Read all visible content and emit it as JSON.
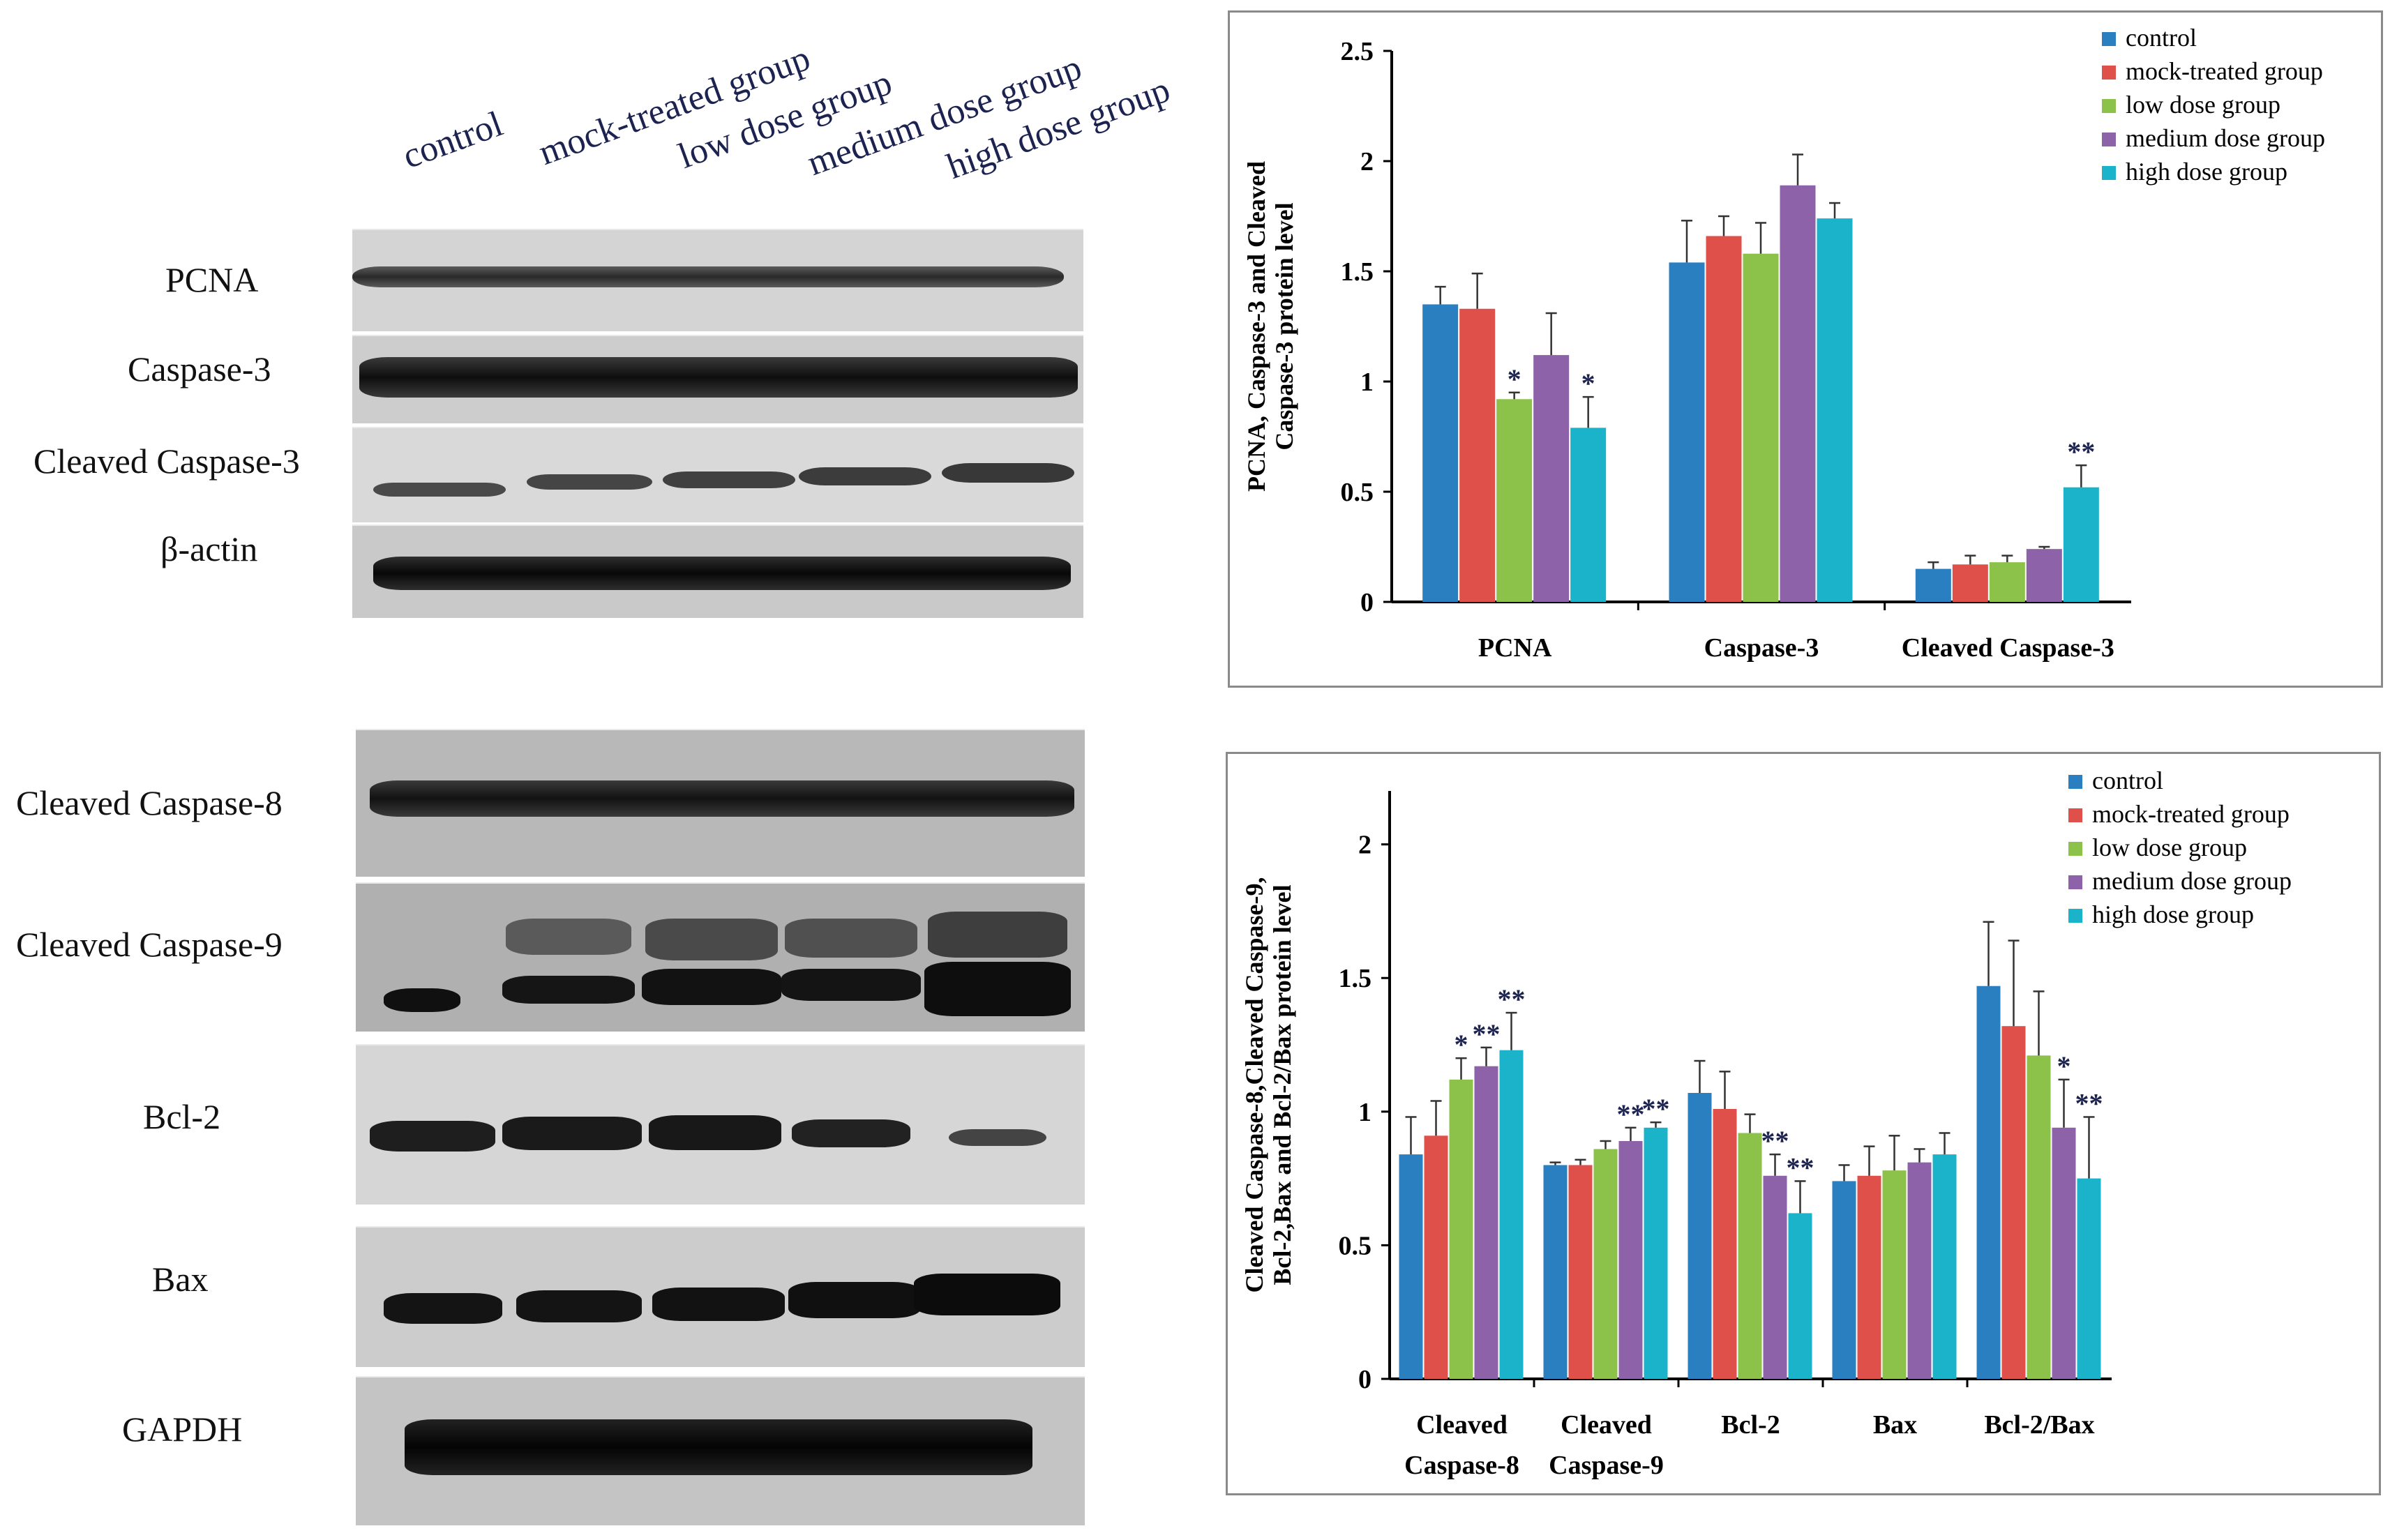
{
  "lanes": [
    "control",
    "mock-treated group",
    "low dose group",
    "medium dose group",
    "high  dose group"
  ],
  "blots_top": [
    "PCNA",
    "Caspase-3",
    "Cleaved Caspase-3",
    "β-actin"
  ],
  "blots_bottom": [
    "Cleaved Caspase-8",
    "Cleaved Caspase-9",
    "Bcl-2",
    "Bax",
    "GAPDH"
  ],
  "colors": {
    "control": "#2a7fc1",
    "mock": "#e0504b",
    "low": "#8cc24a",
    "medium": "#8e62a8",
    "high": "#1bb3c9",
    "sig": "#1c2350"
  },
  "chart_data": [
    {
      "type": "bar",
      "ylabel_lines": [
        "PCNA, Caspase-3 and Cleaved",
        "Caspase-3 protein level"
      ],
      "ylim": [
        0,
        2.5
      ],
      "yticks": [
        "0",
        "0.5",
        "1",
        "1.5",
        "2",
        "2.5"
      ],
      "ytick_values": [
        0,
        0.5,
        1,
        1.5,
        2,
        2.5
      ],
      "categories": [
        [
          "PCNA"
        ],
        [
          "Caspase-3"
        ],
        [
          "Cleaved Caspase-3"
        ]
      ],
      "legend": [
        "control",
        "mock-treated group",
        "low dose group",
        "medium dose group",
        "high dose group"
      ],
      "series": [
        {
          "name": "control",
          "values": [
            1.35,
            1.54,
            0.15
          ],
          "errors": [
            0.08,
            0.19,
            0.03
          ]
        },
        {
          "name": "mock-treated group",
          "values": [
            1.33,
            1.66,
            0.17
          ],
          "errors": [
            0.16,
            0.09,
            0.04
          ]
        },
        {
          "name": "low dose group",
          "values": [
            0.92,
            1.58,
            0.18
          ],
          "errors": [
            0.03,
            0.14,
            0.03
          ]
        },
        {
          "name": "medium dose group",
          "values": [
            1.12,
            1.89,
            0.24
          ],
          "errors": [
            0.19,
            0.14,
            0.01
          ]
        },
        {
          "name": "high dose group",
          "values": [
            0.79,
            1.74,
            0.52
          ],
          "errors": [
            0.14,
            0.07,
            0.1
          ]
        }
      ],
      "significance": [
        {
          "series": 2,
          "category": 0,
          "text": "*"
        },
        {
          "series": 4,
          "category": 0,
          "text": "*"
        },
        {
          "series": 4,
          "category": 2,
          "text": "**"
        }
      ]
    },
    {
      "type": "bar",
      "ylabel_lines": [
        "Cleaved Caspase-8,Cleaved Caspase-9,",
        "Bcl-2,Bax and Bcl-2/Bax protein level"
      ],
      "ylim": [
        0,
        2.2
      ],
      "yticks": [
        "0",
        "0.5",
        "1",
        "1.5",
        "2"
      ],
      "ytick_values": [
        0,
        0.5,
        1,
        1.5,
        2
      ],
      "categories": [
        [
          "Cleaved",
          "Caspase-8"
        ],
        [
          "Cleaved",
          "Caspase-9"
        ],
        [
          "Bcl-2"
        ],
        [
          "Bax"
        ],
        [
          "Bcl-2/Bax"
        ]
      ],
      "legend": [
        "control",
        "mock-treated group",
        "low dose group",
        "medium dose group",
        "high dose group"
      ],
      "series": [
        {
          "name": "control",
          "values": [
            0.84,
            0.8,
            1.07,
            0.74,
            1.47
          ],
          "errors": [
            0.14,
            0.01,
            0.12,
            0.06,
            0.24
          ]
        },
        {
          "name": "mock-treated group",
          "values": [
            0.91,
            0.8,
            1.01,
            0.76,
            1.32
          ],
          "errors": [
            0.13,
            0.02,
            0.14,
            0.11,
            0.32
          ]
        },
        {
          "name": "low dose group",
          "values": [
            1.12,
            0.86,
            0.92,
            0.78,
            1.21
          ],
          "errors": [
            0.08,
            0.03,
            0.07,
            0.13,
            0.24
          ]
        },
        {
          "name": "medium dose group",
          "values": [
            1.17,
            0.89,
            0.76,
            0.81,
            0.94
          ],
          "errors": [
            0.07,
            0.05,
            0.08,
            0.05,
            0.18
          ]
        },
        {
          "name": "high dose group",
          "values": [
            1.23,
            0.94,
            0.62,
            0.84,
            0.75
          ],
          "errors": [
            0.14,
            0.02,
            0.12,
            0.08,
            0.23
          ]
        }
      ],
      "significance": [
        {
          "series": 2,
          "category": 0,
          "text": "*"
        },
        {
          "series": 3,
          "category": 0,
          "text": "**"
        },
        {
          "series": 4,
          "category": 0,
          "text": "**"
        },
        {
          "series": 3,
          "category": 1,
          "text": "**"
        },
        {
          "series": 4,
          "category": 1,
          "text": "**"
        },
        {
          "series": 3,
          "category": 2,
          "text": "**"
        },
        {
          "series": 4,
          "category": 2,
          "text": "**"
        },
        {
          "series": 3,
          "category": 4,
          "text": "*"
        },
        {
          "series": 4,
          "category": 4,
          "text": "**"
        }
      ]
    }
  ]
}
